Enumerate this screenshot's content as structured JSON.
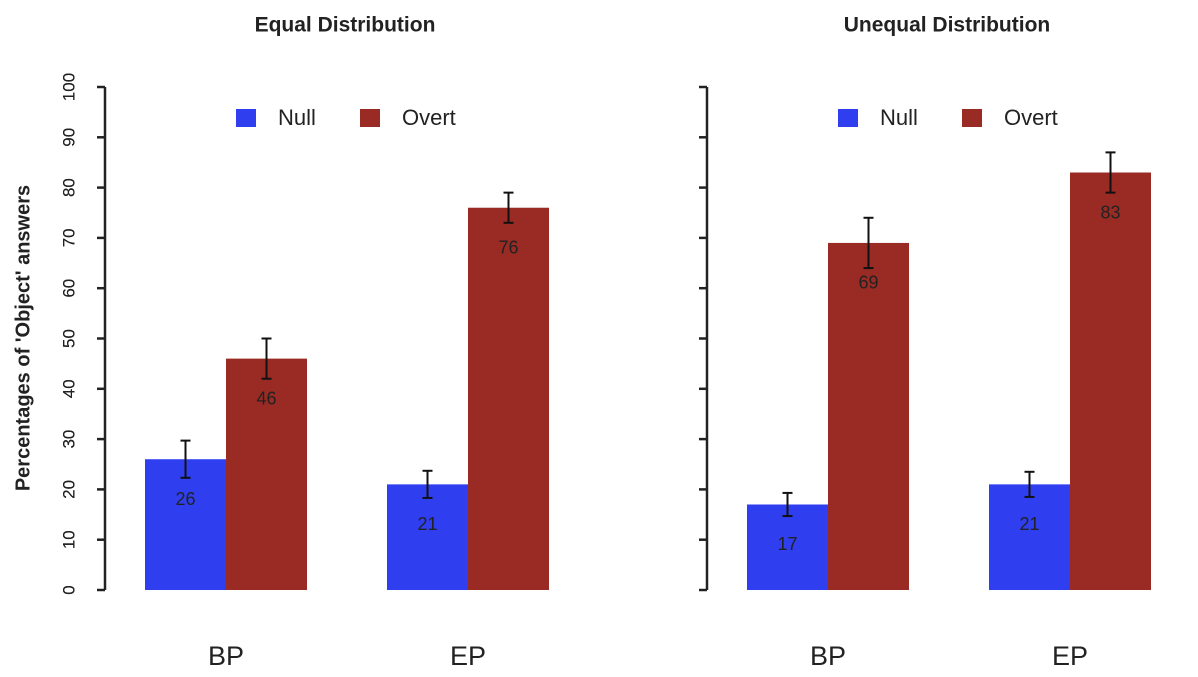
{
  "chart_data": [
    {
      "type": "bar",
      "title": "Equal Distribution",
      "ylabel": "Percentages of 'Object' answers",
      "categories": [
        "BP",
        "EP"
      ],
      "series": [
        {
          "name": "Null",
          "color": "#2f3ff0",
          "values": [
            26,
            21
          ],
          "errors": [
            3.7,
            2.7
          ]
        },
        {
          "name": "Overt",
          "color": "#9a2b24",
          "values": [
            46,
            76
          ],
          "errors": [
            4,
            3
          ]
        }
      ],
      "ylim": [
        0,
        100
      ],
      "yticks": [
        0,
        10,
        20,
        30,
        40,
        50,
        60,
        70,
        80,
        90,
        100
      ],
      "legend": "top-center"
    },
    {
      "type": "bar",
      "title": "Unequal Distribution",
      "categories": [
        "BP",
        "EP"
      ],
      "series": [
        {
          "name": "Null",
          "color": "#2f3ff0",
          "values": [
            17,
            21
          ],
          "errors": [
            2.3,
            2.5
          ]
        },
        {
          "name": "Overt",
          "color": "#9a2b24",
          "values": [
            69,
            83
          ],
          "errors": [
            5,
            4
          ]
        }
      ],
      "ylim": [
        0,
        100
      ],
      "yticks": [
        0,
        10,
        20,
        30,
        40,
        50,
        60,
        70,
        80,
        90,
        100
      ],
      "legend": "top-center"
    }
  ]
}
